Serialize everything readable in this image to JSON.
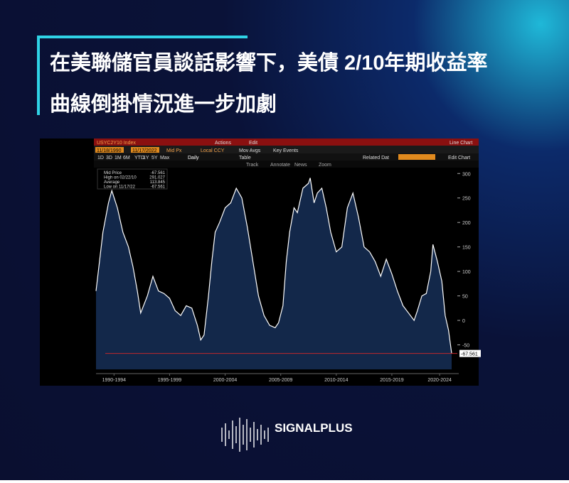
{
  "header": {
    "title_line1": "在美聯儲官員談話影響下，美債 2/10年期收益率",
    "title_line2": "曲線倒掛情況進一步加劇"
  },
  "brand": "SIGNALPLUS",
  "toolbar": {
    "ticker": "USYC2Y10 Index",
    "actions": "Actions",
    "edit": "Edit",
    "chart_type": "Line Chart",
    "start_date": "11/18/1990",
    "end_date": "11/17/2022",
    "price_field": "Mid Px",
    "currency": "Local CCY",
    "mov_avgs": "Mov Avgs",
    "key_events": "Key Events",
    "periods": [
      "1D",
      "3D",
      "1M",
      "6M",
      "YTD",
      "1Y",
      "5Y",
      "Max"
    ],
    "frequency": "Daily",
    "table": "Table",
    "related": "Related Dat",
    "edit_chart": "Edit Chart",
    "tools": [
      "Track",
      "Annotate",
      "News",
      "Zoom"
    ]
  },
  "chart_data": {
    "type": "line",
    "legend": [
      {
        "label": "Mid Price",
        "value": -67.561
      },
      {
        "label": "High on 02/22/10",
        "value": 291.027
      },
      {
        "label": "Average",
        "value": 113.845
      },
      {
        "label": "Low on 11/17/22",
        "value": -67.561
      }
    ],
    "x": [
      1990.88,
      1991.5,
      1992.0,
      1992.3,
      1992.8,
      1993.3,
      1993.8,
      1994.2,
      1994.6,
      1994.9,
      1995.5,
      1996.0,
      1996.5,
      1997.0,
      1997.5,
      1998.0,
      1998.5,
      1999.0,
      1999.5,
      2000.0,
      2000.3,
      2000.6,
      2001.0,
      2001.3,
      2001.6,
      2002.0,
      2002.5,
      2003.0,
      2003.5,
      2004.0,
      2004.5,
      2005.0,
      2005.5,
      2006.0,
      2006.5,
      2007.0,
      2007.3,
      2007.7,
      2008.0,
      2008.3,
      2008.7,
      2009.0,
      2009.5,
      2010.0,
      2010.15,
      2010.5,
      2010.8,
      2011.2,
      2011.6,
      2012.0,
      2012.5,
      2013.0,
      2013.5,
      2014.0,
      2014.5,
      2015.0,
      2015.5,
      2016.0,
      2016.5,
      2017.0,
      2017.5,
      2018.0,
      2018.5,
      2019.0,
      2019.5,
      2019.8,
      2020.2,
      2020.6,
      2021.0,
      2021.2,
      2021.6,
      2022.0,
      2022.3,
      2022.6,
      2022.88
    ],
    "series": [
      {
        "name": "Mid Price",
        "color": "#ffffff",
        "values": [
          60,
          180,
          240,
          265,
          230,
          180,
          150,
          110,
          60,
          15,
          50,
          90,
          60,
          55,
          45,
          20,
          10,
          30,
          25,
          -10,
          -40,
          -30,
          50,
          120,
          180,
          200,
          230,
          240,
          270,
          250,
          190,
          120,
          50,
          10,
          -10,
          -15,
          -5,
          30,
          120,
          180,
          230,
          220,
          270,
          280,
          291.027,
          240,
          260,
          270,
          230,
          180,
          140,
          150,
          230,
          260,
          210,
          150,
          140,
          120,
          90,
          125,
          95,
          60,
          30,
          15,
          0,
          20,
          50,
          55,
          100,
          155,
          120,
          80,
          10,
          -20,
          -67.561
        ]
      }
    ],
    "xlim": [
      1990.88,
      2022.88
    ],
    "xticks": [
      {
        "value": 1992.5,
        "label": "1990-1994"
      },
      {
        "value": 1997.5,
        "label": "1995-1999"
      },
      {
        "value": 2002.5,
        "label": "2000-2004"
      },
      {
        "value": 2007.5,
        "label": "2005-2009"
      },
      {
        "value": 2012.5,
        "label": "2010-2014"
      },
      {
        "value": 2017.5,
        "label": "2015-2019"
      },
      {
        "value": 2021.8,
        "label": "2020-2024"
      }
    ],
    "ylim": [
      -100,
      312
    ],
    "yticks": [
      -50,
      0,
      50,
      100,
      150,
      200,
      250,
      300
    ]
  }
}
